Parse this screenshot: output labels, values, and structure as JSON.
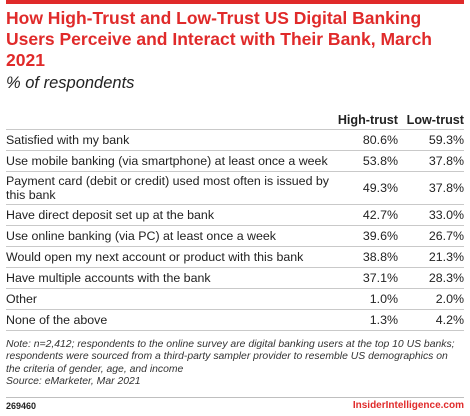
{
  "header": {
    "title": "How High-Trust and Low-Trust US Digital Banking Users Perceive and Interact with Their Bank, March 2021",
    "subtitle": "% of respondents"
  },
  "chart_data": {
    "type": "table",
    "title": "How High-Trust and Low-Trust US Digital Banking Users Perceive and Interact with Their Bank, March 2021",
    "subtitle": "% of respondents",
    "columns": [
      "High-trust",
      "Low-trust"
    ],
    "rows": [
      {
        "label": "Satisfied with my bank",
        "values": [
          "80.6%",
          "59.3%"
        ]
      },
      {
        "label": "Use mobile banking (via smartphone) at least once a week",
        "values": [
          "53.8%",
          "37.8%"
        ]
      },
      {
        "label": "Payment card (debit or credit) used most often is issued by this bank",
        "values": [
          "49.3%",
          "37.8%"
        ]
      },
      {
        "label": "Have direct deposit set up at the bank",
        "values": [
          "42.7%",
          "33.0%"
        ]
      },
      {
        "label": "Use online banking (via PC) at least once a week",
        "values": [
          "39.6%",
          "26.7%"
        ]
      },
      {
        "label": "Would open my next account or product with this bank",
        "values": [
          "38.8%",
          "21.3%"
        ]
      },
      {
        "label": "Have multiple accounts with the bank",
        "values": [
          "37.1%",
          "28.3%"
        ]
      },
      {
        "label": "Other",
        "values": [
          "1.0%",
          "2.0%"
        ]
      },
      {
        "label": "None of the above",
        "values": [
          "1.3%",
          "4.2%"
        ]
      }
    ]
  },
  "note": {
    "text": "Note: n=2,412; respondents to the online survey are digital banking users at the top 10 US banks; respondents were sourced from a third-party sampler provider to resemble US demographics on the criteria of gender, age, and income",
    "source": "Source: eMarketer, Mar 2021"
  },
  "footer": {
    "chart_id": "269460",
    "brand": "InsiderIntelligence.com"
  },
  "colors": {
    "accent": "#e02a2a",
    "text": "#222222",
    "rule": "#c9c9c9"
  }
}
